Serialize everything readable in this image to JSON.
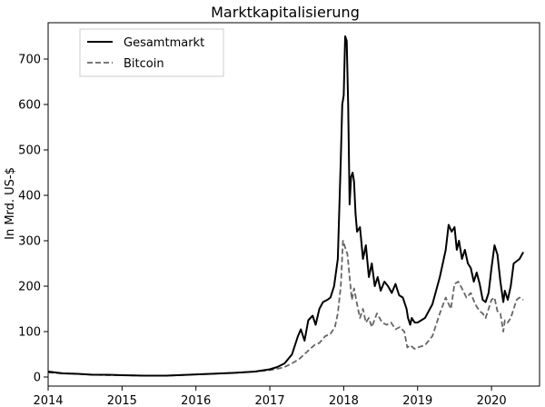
{
  "chart_data": {
    "type": "line",
    "title": "Marktkapitalisierung",
    "xlabel": "",
    "ylabel": "In Mrd. US-$",
    "xlim": [
      2014.0,
      2020.65
    ],
    "ylim": [
      -20,
      780
    ],
    "x_ticks": [
      "2014",
      "2015",
      "2016",
      "2017",
      "2018",
      "2019",
      "2020"
    ],
    "y_ticks": [
      "0",
      "100",
      "200",
      "300",
      "400",
      "500",
      "600",
      "700"
    ],
    "grid": false,
    "legend": "top-left",
    "series": [
      {
        "name": "Gesamtmarkt",
        "style": "solid",
        "color": "#000000",
        "x": [
          2014.0,
          2014.1,
          2014.2,
          2014.4,
          2014.6,
          2014.8,
          2015.0,
          2015.3,
          2015.6,
          2015.9,
          2016.2,
          2016.5,
          2016.8,
          2017.0,
          2017.1,
          2017.2,
          2017.3,
          2017.38,
          2017.42,
          2017.47,
          2017.52,
          2017.58,
          2017.62,
          2017.67,
          2017.72,
          2017.78,
          2017.82,
          2017.87,
          2017.92,
          2017.96,
          2017.98,
          2018.0,
          2018.02,
          2018.04,
          2018.06,
          2018.08,
          2018.1,
          2018.12,
          2018.14,
          2018.16,
          2018.18,
          2018.22,
          2018.26,
          2018.3,
          2018.34,
          2018.38,
          2018.42,
          2018.46,
          2018.5,
          2018.55,
          2018.6,
          2018.65,
          2018.7,
          2018.75,
          2018.8,
          2018.85,
          2018.87,
          2018.9,
          2018.92,
          2018.96,
          2019.0,
          2019.1,
          2019.2,
          2019.3,
          2019.38,
          2019.42,
          2019.46,
          2019.5,
          2019.53,
          2019.56,
          2019.6,
          2019.64,
          2019.68,
          2019.72,
          2019.76,
          2019.8,
          2019.84,
          2019.88,
          2019.92,
          2019.96,
          2020.0,
          2020.04,
          2020.08,
          2020.12,
          2020.16,
          2020.18,
          2020.22,
          2020.26,
          2020.3,
          2020.34,
          2020.38,
          2020.43
        ],
        "values": [
          12,
          10,
          8,
          7,
          5,
          5,
          4,
          3,
          3,
          5,
          7,
          9,
          12,
          17,
          22,
          30,
          50,
          90,
          105,
          80,
          125,
          135,
          115,
          150,
          165,
          170,
          175,
          200,
          260,
          480,
          600,
          620,
          750,
          740,
          600,
          380,
          440,
          450,
          430,
          360,
          320,
          330,
          260,
          290,
          220,
          250,
          200,
          220,
          190,
          210,
          200,
          185,
          205,
          180,
          175,
          150,
          130,
          115,
          130,
          120,
          120,
          130,
          160,
          220,
          280,
          335,
          320,
          330,
          280,
          300,
          260,
          280,
          250,
          240,
          210,
          230,
          205,
          170,
          165,
          185,
          240,
          290,
          270,
          210,
          165,
          190,
          170,
          200,
          250,
          255,
          260,
          275
        ]
      },
      {
        "name": "Bitcoin",
        "style": "dashed",
        "color": "#666666",
        "x": [
          2014.0,
          2014.1,
          2014.2,
          2014.4,
          2014.6,
          2014.8,
          2015.0,
          2015.3,
          2015.6,
          2015.9,
          2016.2,
          2016.5,
          2016.8,
          2017.0,
          2017.1,
          2017.2,
          2017.3,
          2017.4,
          2017.5,
          2017.6,
          2017.67,
          2017.75,
          2017.82,
          2017.88,
          2017.92,
          2017.96,
          2017.99,
          2018.02,
          2018.05,
          2018.08,
          2018.11,
          2018.14,
          2018.18,
          2018.22,
          2018.26,
          2018.3,
          2018.34,
          2018.38,
          2018.45,
          2018.52,
          2018.58,
          2018.64,
          2018.7,
          2018.76,
          2018.82,
          2018.86,
          2018.9,
          2018.96,
          2019.0,
          2019.1,
          2019.2,
          2019.3,
          2019.38,
          2019.45,
          2019.5,
          2019.55,
          2019.6,
          2019.66,
          2019.72,
          2019.78,
          2019.84,
          2019.88,
          2019.92,
          2019.96,
          2020.0,
          2020.04,
          2020.08,
          2020.12,
          2020.16,
          2020.18,
          2020.22,
          2020.26,
          2020.3,
          2020.34,
          2020.38,
          2020.43
        ],
        "values": [
          10,
          9,
          8,
          7,
          5,
          4,
          4,
          3,
          3,
          5,
          7,
          9,
          12,
          15,
          18,
          22,
          30,
          40,
          55,
          70,
          75,
          90,
          95,
          110,
          140,
          200,
          300,
          285,
          270,
          220,
          170,
          195,
          160,
          130,
          150,
          120,
          130,
          110,
          140,
          120,
          115,
          120,
          105,
          110,
          100,
          65,
          70,
          62,
          65,
          70,
          90,
          140,
          175,
          150,
          205,
          210,
          195,
          175,
          185,
          160,
          145,
          140,
          130,
          150,
          170,
          175,
          145,
          140,
          100,
          125,
          120,
          130,
          150,
          170,
          175,
          170
        ]
      }
    ]
  }
}
